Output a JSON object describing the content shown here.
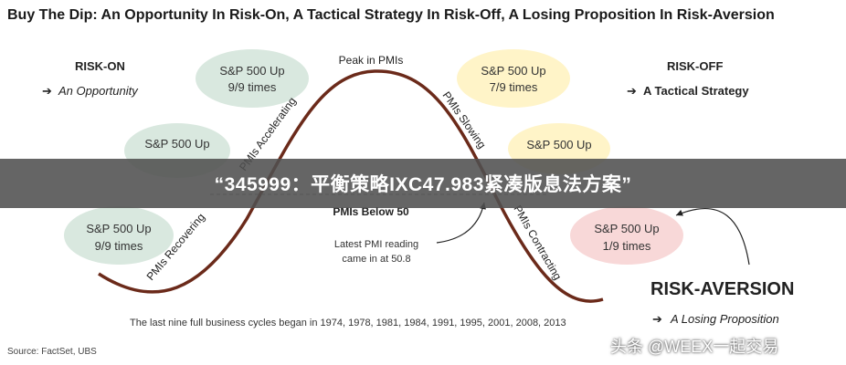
{
  "title": "Buy The Dip: An Opportunity In Risk-On, A Tactical Strategy In Risk-Off, A Losing Proposition In Risk-Aversion",
  "regimes": {
    "risk_on": {
      "heading": "RISK-ON",
      "subtitle": "An Opportunity"
    },
    "risk_off": {
      "heading": "RISK-OFF",
      "subtitle": "A Tactical Strategy"
    },
    "risk_aversion": {
      "heading": "RISK-AVERSION",
      "subtitle": "A Losing Proposition"
    }
  },
  "bubbles": [
    {
      "line1": "S&P 500 Up",
      "line2": "9/9 times"
    },
    {
      "line1": "S&P 500 Up",
      "line2": ""
    },
    {
      "line1": "S&P 500 Up",
      "line2": "9/9 times"
    },
    {
      "line1": "S&P 500 Up",
      "line2": "7/9 times"
    },
    {
      "line1": "S&P 500 Up",
      "line2": ""
    },
    {
      "line1": "S&P 500 Up",
      "line2": "1/9 times"
    }
  ],
  "curve": {
    "peak": "Peak in PMIs",
    "below_50": "PMIs Below 50",
    "accelerating": "PMIs Accelerating",
    "recovering": "PMIs Recovering",
    "slowing": "PMIs Slowing",
    "contracting": "PMIs Contracting"
  },
  "annotations": {
    "latest_pmi_line1": "Latest PMI reading",
    "latest_pmi_line2": "came in at 50.8"
  },
  "footnote": "The last nine full business cycles began in 1974, 1978, 1981, 1984, 1991, 1995, 2001, 2008, 2013",
  "source": "Source: FactSet, UBS",
  "banner": "“345999：平衡策略IXC47.983紧凑版息法方案”",
  "watermark": "头条 @WEEX一起交易",
  "colors": {
    "risk_on_bubble": "#d9e8df",
    "risk_off_bubble": "#fff4c8",
    "risk_aversion_bubble": "#f8d8d8",
    "curve": "#6b2a1a"
  }
}
